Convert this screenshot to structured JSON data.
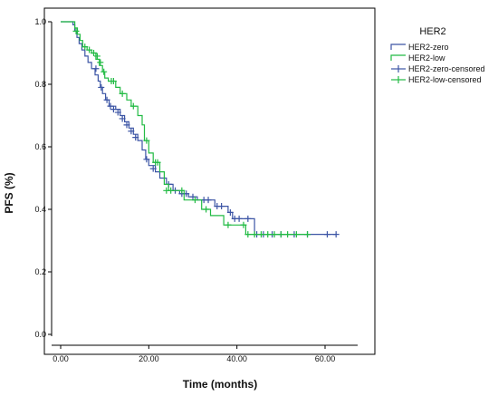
{
  "chart_data": {
    "type": "line",
    "subtype": "kaplan-meier step",
    "xlabel": "Time (months)",
    "ylabel": "PFS (%)",
    "xlim": [
      0,
      75
    ],
    "ylim": [
      0,
      1.0
    ],
    "x_ticks": [
      "0.00",
      "20.00",
      "40.00",
      "60.00"
    ],
    "x_tick_values": [
      0,
      20,
      40,
      60
    ],
    "y_ticks": [
      "0.0",
      "0.2",
      "0.4",
      "0.6",
      "0.8",
      "1.0"
    ],
    "y_tick_values": [
      0,
      0.2,
      0.4,
      0.6,
      0.8,
      1.0
    ],
    "grid": false,
    "legend": {
      "title": "HER2",
      "placement": "top-right",
      "entries": [
        "HER2-zero",
        "HER2-low",
        "HER2-zero-censored",
        "HER2-low-censored"
      ]
    },
    "series": [
      {
        "name": "HER2-zero",
        "color": "#3c55a5",
        "steps": [
          [
            0,
            1.0
          ],
          [
            2.3,
            1.0
          ],
          [
            2.8,
            0.99
          ],
          [
            3.2,
            0.97
          ],
          [
            3.7,
            0.95
          ],
          [
            4.2,
            0.93
          ],
          [
            4.8,
            0.91
          ],
          [
            5.5,
            0.89
          ],
          [
            6.2,
            0.87
          ],
          [
            7.0,
            0.85
          ],
          [
            7.8,
            0.83
          ],
          [
            8.5,
            0.81
          ],
          [
            9.0,
            0.79
          ],
          [
            9.5,
            0.77
          ],
          [
            10.2,
            0.75
          ],
          [
            11.0,
            0.73
          ],
          [
            12.5,
            0.72
          ],
          [
            13.5,
            0.7
          ],
          [
            14.5,
            0.68
          ],
          [
            15.5,
            0.66
          ],
          [
            16.5,
            0.64
          ],
          [
            17.5,
            0.62
          ],
          [
            18.5,
            0.59
          ],
          [
            19.3,
            0.56
          ],
          [
            20.0,
            0.54
          ],
          [
            21.5,
            0.52
          ],
          [
            22.5,
            0.5
          ],
          [
            24.0,
            0.48
          ],
          [
            25.5,
            0.46
          ],
          [
            27.0,
            0.45
          ],
          [
            29.0,
            0.44
          ],
          [
            31.0,
            0.43
          ],
          [
            35.0,
            0.41
          ],
          [
            38.0,
            0.39
          ],
          [
            39.0,
            0.37
          ],
          [
            44.0,
            0.32
          ],
          [
            62.5,
            0.32
          ]
        ],
        "censored": [
          [
            8.0,
            0.85
          ],
          [
            9.2,
            0.79
          ],
          [
            10.5,
            0.75
          ],
          [
            11.3,
            0.73
          ],
          [
            12.0,
            0.72
          ],
          [
            13.0,
            0.71
          ],
          [
            14.0,
            0.69
          ],
          [
            15.0,
            0.67
          ],
          [
            16.0,
            0.65
          ],
          [
            17.0,
            0.63
          ],
          [
            19.5,
            0.56
          ],
          [
            21.0,
            0.53
          ],
          [
            24.5,
            0.48
          ],
          [
            26.0,
            0.46
          ],
          [
            27.5,
            0.45
          ],
          [
            28.5,
            0.45
          ],
          [
            30.0,
            0.44
          ],
          [
            32.5,
            0.43
          ],
          [
            33.5,
            0.43
          ],
          [
            35.5,
            0.41
          ],
          [
            36.5,
            0.41
          ],
          [
            38.5,
            0.39
          ],
          [
            39.5,
            0.37
          ],
          [
            40.5,
            0.37
          ],
          [
            42.5,
            0.37
          ],
          [
            44.5,
            0.32
          ],
          [
            46.0,
            0.32
          ],
          [
            48.0,
            0.32
          ],
          [
            50.0,
            0.32
          ],
          [
            53.0,
            0.32
          ],
          [
            56.0,
            0.32
          ],
          [
            60.5,
            0.32
          ],
          [
            62.5,
            0.32
          ]
        ]
      },
      {
        "name": "HER2-low",
        "color": "#22bb44",
        "steps": [
          [
            0,
            1.0
          ],
          [
            2.8,
            1.0
          ],
          [
            3.2,
            0.98
          ],
          [
            3.8,
            0.96
          ],
          [
            4.4,
            0.94
          ],
          [
            5.0,
            0.92
          ],
          [
            6.0,
            0.91
          ],
          [
            7.0,
            0.9
          ],
          [
            8.0,
            0.88
          ],
          [
            8.8,
            0.86
          ],
          [
            9.5,
            0.84
          ],
          [
            10.0,
            0.82
          ],
          [
            10.8,
            0.81
          ],
          [
            12.5,
            0.79
          ],
          [
            13.5,
            0.77
          ],
          [
            15.0,
            0.75
          ],
          [
            16.0,
            0.73
          ],
          [
            17.5,
            0.7
          ],
          [
            18.5,
            0.67
          ],
          [
            19.0,
            0.62
          ],
          [
            20.0,
            0.58
          ],
          [
            21.0,
            0.55
          ],
          [
            22.5,
            0.52
          ],
          [
            23.5,
            0.48
          ],
          [
            24.5,
            0.46
          ],
          [
            28.0,
            0.43
          ],
          [
            32.0,
            0.4
          ],
          [
            34.0,
            0.38
          ],
          [
            37.0,
            0.35
          ],
          [
            42.0,
            0.32
          ],
          [
            56.0,
            0.32
          ]
        ],
        "censored": [
          [
            3.5,
            0.97
          ],
          [
            5.5,
            0.92
          ],
          [
            6.5,
            0.91
          ],
          [
            7.5,
            0.9
          ],
          [
            8.3,
            0.89
          ],
          [
            9.0,
            0.87
          ],
          [
            9.8,
            0.84
          ],
          [
            11.5,
            0.81
          ],
          [
            12.0,
            0.81
          ],
          [
            14.0,
            0.77
          ],
          [
            16.5,
            0.73
          ],
          [
            19.5,
            0.62
          ],
          [
            21.5,
            0.55
          ],
          [
            22.0,
            0.55
          ],
          [
            24.0,
            0.46
          ],
          [
            25.0,
            0.46
          ],
          [
            27.5,
            0.46
          ],
          [
            30.5,
            0.43
          ],
          [
            33.0,
            0.4
          ],
          [
            38.0,
            0.35
          ],
          [
            41.5,
            0.35
          ],
          [
            42.5,
            0.32
          ],
          [
            44.0,
            0.32
          ],
          [
            45.5,
            0.32
          ],
          [
            47.0,
            0.32
          ],
          [
            48.5,
            0.32
          ],
          [
            50.0,
            0.32
          ],
          [
            51.5,
            0.32
          ],
          [
            53.5,
            0.32
          ],
          [
            56.0,
            0.32
          ]
        ]
      }
    ]
  }
}
